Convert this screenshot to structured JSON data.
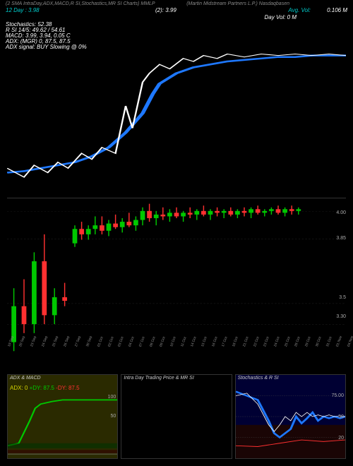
{
  "header": {
    "line1_left": "(2 SMA IntraDay,ADX,MACD,R    SI,Stochastics,MR    SI Charts) MMLP",
    "line1_right": "(Martin Midstream Partners L.P.) Nasdaqbasen",
    "line2_left": "12 Day : 3.98",
    "line2_center": "(2): 3.99",
    "line2_right_label": "Avg. Vol:",
    "line2_right_val": "0.106    M",
    "line3": "Day Vol: 0   M",
    "stochastics": "Stochastics: 52.38",
    "rsi": "R    SI 14/5: 49.62 / 54.61",
    "macd": "MACD: 3.99,  3.94,  0.05 C",
    "adx": "ADX:                       (MGR) 0,  87.5,  87.5",
    "adx_signal": "ADX signal:                                    BUY Slowing @ 0%"
  },
  "colors": {
    "bg": "#000000",
    "text": "#ffffff",
    "teal": "#00cccc",
    "blue": "#1e78ff",
    "white_line": "#ffffff",
    "green": "#00c800",
    "red": "#ff3030",
    "yellow": "#d4d400",
    "grid": "#333333",
    "dark_yellow_bg": "#2a2a00",
    "dark_blue_bg": "#000033",
    "dark_red_bg": "#1a0505"
  },
  "main_chart": {
    "sma_blue": [
      [
        0,
        95
      ],
      [
        5,
        94
      ],
      [
        10,
        92
      ],
      [
        15,
        90
      ],
      [
        20,
        88
      ],
      [
        25,
        84
      ],
      [
        30,
        78
      ],
      [
        35,
        68
      ],
      [
        40,
        55
      ],
      [
        43,
        42
      ],
      [
        45,
        35
      ],
      [
        50,
        28
      ],
      [
        55,
        24
      ],
      [
        60,
        22
      ],
      [
        65,
        20
      ],
      [
        70,
        19
      ],
      [
        75,
        18
      ],
      [
        80,
        17
      ],
      [
        85,
        17
      ],
      [
        90,
        16
      ],
      [
        95,
        16
      ],
      [
        100,
        16
      ]
    ],
    "price_white": [
      [
        0,
        92
      ],
      [
        5,
        98
      ],
      [
        8,
        90
      ],
      [
        12,
        95
      ],
      [
        15,
        88
      ],
      [
        18,
        92
      ],
      [
        22,
        82
      ],
      [
        25,
        86
      ],
      [
        28,
        78
      ],
      [
        32,
        82
      ],
      [
        35,
        50
      ],
      [
        37,
        65
      ],
      [
        40,
        34
      ],
      [
        42,
        28
      ],
      [
        45,
        22
      ],
      [
        48,
        25
      ],
      [
        52,
        18
      ],
      [
        55,
        20
      ],
      [
        58,
        16
      ],
      [
        62,
        18
      ],
      [
        65,
        15
      ],
      [
        70,
        17
      ],
      [
        75,
        15
      ],
      [
        80,
        16
      ],
      [
        85,
        15
      ],
      [
        90,
        16
      ],
      [
        95,
        15
      ],
      [
        100,
        16
      ]
    ]
  },
  "candle_chart": {
    "y_labels": [
      {
        "y": 8,
        "text": "4.00"
      },
      {
        "y": 25,
        "text": "3.85"
      },
      {
        "y": 65,
        "text": "3.5"
      },
      {
        "y": 78,
        "text": "3.30"
      }
    ],
    "candles": [
      {
        "x": 2,
        "o": 3.25,
        "h": 3.55,
        "l": 3.2,
        "c": 3.45,
        "t": "g"
      },
      {
        "x": 5,
        "o": 3.45,
        "h": 3.6,
        "l": 3.3,
        "c": 3.35,
        "t": "r"
      },
      {
        "x": 8,
        "o": 3.35,
        "h": 3.75,
        "l": 3.3,
        "c": 3.7,
        "t": "g"
      },
      {
        "x": 11,
        "o": 3.7,
        "h": 3.85,
        "l": 3.35,
        "c": 3.4,
        "t": "r"
      },
      {
        "x": 14,
        "o": 3.4,
        "h": 3.55,
        "l": 3.35,
        "c": 3.5,
        "t": "g"
      },
      {
        "x": 17,
        "o": 3.5,
        "h": 3.58,
        "l": 3.45,
        "c": 3.48,
        "t": "r"
      },
      {
        "x": 20,
        "o": 3.8,
        "h": 3.9,
        "l": 3.78,
        "c": 3.88,
        "t": "g"
      },
      {
        "x": 22,
        "o": 3.88,
        "h": 3.92,
        "l": 3.82,
        "c": 3.85,
        "t": "r"
      },
      {
        "x": 24,
        "o": 3.85,
        "h": 3.9,
        "l": 3.82,
        "c": 3.88,
        "t": "g"
      },
      {
        "x": 26,
        "o": 3.88,
        "h": 3.95,
        "l": 3.85,
        "c": 3.9,
        "t": "g"
      },
      {
        "x": 28,
        "o": 3.9,
        "h": 3.95,
        "l": 3.85,
        "c": 3.87,
        "t": "r"
      },
      {
        "x": 30,
        "o": 3.87,
        "h": 3.93,
        "l": 3.84,
        "c": 3.91,
        "t": "g"
      },
      {
        "x": 32,
        "o": 3.91,
        "h": 3.96,
        "l": 3.88,
        "c": 3.89,
        "t": "r"
      },
      {
        "x": 34,
        "o": 3.89,
        "h": 3.94,
        "l": 3.86,
        "c": 3.92,
        "t": "g"
      },
      {
        "x": 36,
        "o": 3.92,
        "h": 3.97,
        "l": 3.89,
        "c": 3.9,
        "t": "r"
      },
      {
        "x": 38,
        "o": 3.9,
        "h": 3.95,
        "l": 3.87,
        "c": 3.93,
        "t": "g"
      },
      {
        "x": 40,
        "o": 3.93,
        "h": 4.0,
        "l": 3.9,
        "c": 3.98,
        "t": "g"
      },
      {
        "x": 42,
        "o": 3.98,
        "h": 4.02,
        "l": 3.92,
        "c": 3.94,
        "t": "r"
      },
      {
        "x": 44,
        "o": 3.94,
        "h": 3.98,
        "l": 3.9,
        "c": 3.96,
        "t": "g"
      },
      {
        "x": 46,
        "o": 3.96,
        "h": 4.0,
        "l": 3.93,
        "c": 3.95,
        "t": "r"
      },
      {
        "x": 48,
        "o": 3.95,
        "h": 3.99,
        "l": 3.92,
        "c": 3.97,
        "t": "g"
      },
      {
        "x": 50,
        "o": 3.97,
        "h": 4.0,
        "l": 3.94,
        "c": 3.95,
        "t": "r"
      },
      {
        "x": 52,
        "o": 3.95,
        "h": 3.98,
        "l": 3.92,
        "c": 3.97,
        "t": "g"
      },
      {
        "x": 54,
        "o": 3.97,
        "h": 4.0,
        "l": 3.94,
        "c": 3.96,
        "t": "r"
      },
      {
        "x": 56,
        "o": 3.96,
        "h": 3.99,
        "l": 3.93,
        "c": 3.98,
        "t": "g"
      },
      {
        "x": 58,
        "o": 3.98,
        "h": 4.01,
        "l": 3.95,
        "c": 3.96,
        "t": "r"
      },
      {
        "x": 60,
        "o": 3.96,
        "h": 3.99,
        "l": 3.93,
        "c": 3.98,
        "t": "g"
      },
      {
        "x": 62,
        "o": 3.98,
        "h": 4.0,
        "l": 3.95,
        "c": 3.97,
        "t": "r"
      },
      {
        "x": 64,
        "o": 3.97,
        "h": 3.99,
        "l": 3.94,
        "c": 3.98,
        "t": "g"
      },
      {
        "x": 66,
        "o": 3.98,
        "h": 4.0,
        "l": 3.95,
        "c": 3.96,
        "t": "r"
      },
      {
        "x": 68,
        "o": 3.96,
        "h": 3.99,
        "l": 3.94,
        "c": 3.98,
        "t": "g"
      },
      {
        "x": 70,
        "o": 3.98,
        "h": 4.0,
        "l": 3.95,
        "c": 3.97,
        "t": "r"
      },
      {
        "x": 72,
        "o": 3.97,
        "h": 4.0,
        "l": 3.94,
        "c": 3.99,
        "t": "g"
      },
      {
        "x": 74,
        "o": 3.99,
        "h": 4.01,
        "l": 3.96,
        "c": 3.97,
        "t": "r"
      },
      {
        "x": 76,
        "o": 3.97,
        "h": 3.99,
        "l": 3.95,
        "c": 3.98,
        "t": "g"
      },
      {
        "x": 78,
        "o": 3.98,
        "h": 4.0,
        "l": 3.96,
        "c": 3.99,
        "t": "g"
      },
      {
        "x": 80,
        "o": 3.99,
        "h": 4.01,
        "l": 3.96,
        "c": 3.97,
        "t": "r"
      },
      {
        "x": 82,
        "o": 3.97,
        "h": 4.0,
        "l": 3.95,
        "c": 3.99,
        "t": "g"
      },
      {
        "x": 84,
        "o": 3.99,
        "h": 4.01,
        "l": 3.96,
        "c": 3.98,
        "t": "r"
      },
      {
        "x": 86,
        "o": 3.98,
        "h": 4.0,
        "l": 3.96,
        "c": 3.99,
        "t": "g"
      }
    ],
    "y_min": 3.15,
    "y_max": 4.05,
    "dates": [
      "19 Sep",
      "20 Sep",
      "23 Sep",
      "24 Sep",
      "25 Sep",
      "26 Sep",
      "27 Sep",
      "30 Sep",
      "01 Oct",
      "02 Oct",
      "03 Oct",
      "04 Oct",
      "07 Oct",
      "08 Oct",
      "09 Oct",
      "10 Oct",
      "11 Oct",
      "14 Oct",
      "15 Oct",
      "16 Oct",
      "17 Oct",
      "18 Oct",
      "21 Oct",
      "22 Oct",
      "23 Oct",
      "24 Oct",
      "25 Oct",
      "28 Oct",
      "29 Oct",
      "30 Oct",
      "31 Oct",
      "01 Nov",
      "04 Nov",
      "05 Nov",
      "06 Nov",
      "07 Nov",
      "08 Nov",
      "11 Nov",
      "12 Nov",
      "13 Nov",
      "14 Nov",
      "15 Nov",
      "18 Nov",
      "19 Nov",
      "20 Nov",
      "21 Nov",
      "22 Nov",
      "25 Nov",
      "26 Nov",
      "27 Nov"
    ]
  },
  "bottom_panels": {
    "adx": {
      "title": "ADX  & MACD",
      "label_html": "ADX: 0  +DY: 87.5 -DY: 87.5",
      "green_line": [
        [
          0,
          85
        ],
        [
          10,
          82
        ],
        [
          20,
          55
        ],
        [
          25,
          40
        ],
        [
          30,
          35
        ],
        [
          40,
          32
        ],
        [
          50,
          30
        ],
        [
          60,
          30
        ],
        [
          70,
          30
        ],
        [
          80,
          30
        ],
        [
          90,
          30
        ],
        [
          100,
          30
        ]
      ],
      "y_ticks": [
        "100",
        "50"
      ]
    },
    "intra": {
      "title": "Intra   Day Trading Price   & MR       SI"
    },
    "stoch": {
      "title": "Stochastics & R               SI",
      "blue_line": [
        [
          0,
          20
        ],
        [
          10,
          25
        ],
        [
          20,
          30
        ],
        [
          30,
          55
        ],
        [
          35,
          70
        ],
        [
          40,
          75
        ],
        [
          50,
          65
        ],
        [
          55,
          50
        ],
        [
          60,
          58
        ],
        [
          65,
          52
        ],
        [
          70,
          45
        ],
        [
          75,
          55
        ],
        [
          80,
          50
        ],
        [
          85,
          52
        ],
        [
          90,
          50
        ],
        [
          95,
          52
        ],
        [
          100,
          50
        ]
      ],
      "white_line": [
        [
          0,
          25
        ],
        [
          10,
          22
        ],
        [
          20,
          35
        ],
        [
          30,
          60
        ],
        [
          35,
          68
        ],
        [
          40,
          60
        ],
        [
          45,
          50
        ],
        [
          50,
          55
        ],
        [
          55,
          45
        ],
        [
          60,
          50
        ],
        [
          65,
          45
        ],
        [
          70,
          50
        ],
        [
          75,
          48
        ],
        [
          80,
          50
        ],
        [
          85,
          48
        ],
        [
          90,
          50
        ],
        [
          95,
          49
        ],
        [
          100,
          50
        ]
      ],
      "y_ticks": [
        {
          "y": 25,
          "t": "75.00"
        },
        {
          "y": 50,
          "t": "50"
        },
        {
          "y": 75,
          "t": "20"
        }
      ]
    }
  }
}
